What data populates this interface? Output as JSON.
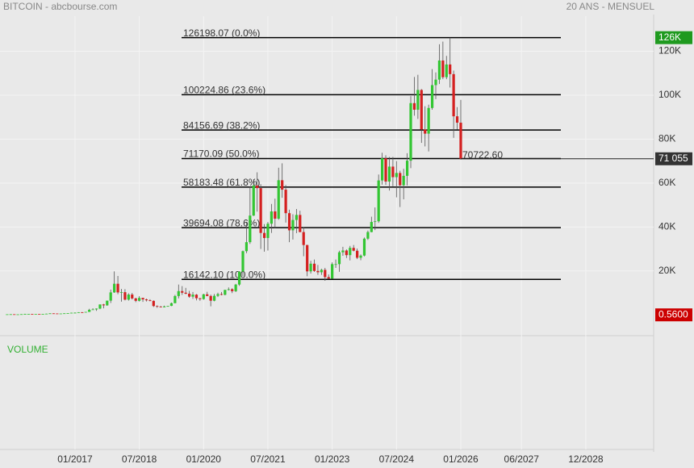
{
  "header": {
    "title": "BITCOIN - abcbourse.com",
    "period": "20 ANS - MENSUEL"
  },
  "chart_data": {
    "type": "candlestick",
    "x": [
      "06/2015",
      "07/2015",
      "08/2015",
      "09/2015",
      "10/2015",
      "11/2015",
      "12/2015",
      "01/2016",
      "02/2016",
      "03/2016",
      "04/2016",
      "05/2016",
      "06/2016",
      "07/2016",
      "08/2016",
      "09/2016",
      "10/2016",
      "11/2016",
      "12/2016",
      "01/2017",
      "02/2017",
      "03/2017",
      "04/2017",
      "05/2017",
      "06/2017",
      "07/2017",
      "08/2017",
      "09/2017",
      "10/2017",
      "11/2017",
      "12/2017",
      "01/2018",
      "02/2018",
      "03/2018",
      "04/2018",
      "05/2018",
      "06/2018",
      "07/2018",
      "08/2018",
      "09/2018",
      "10/2018",
      "11/2018",
      "12/2018",
      "01/2019",
      "02/2019",
      "03/2019",
      "04/2019",
      "05/2019",
      "06/2019",
      "07/2019",
      "08/2019",
      "09/2019",
      "10/2019",
      "11/2019",
      "12/2019",
      "01/2020",
      "02/2020",
      "03/2020",
      "04/2020",
      "05/2020",
      "06/2020",
      "07/2020",
      "08/2020",
      "09/2020",
      "10/2020",
      "11/2020",
      "12/2020",
      "01/2021",
      "02/2021",
      "03/2021",
      "04/2021",
      "05/2021",
      "06/2021",
      "07/2021",
      "08/2021",
      "09/2021",
      "10/2021",
      "11/2021",
      "12/2021",
      "01/2022",
      "02/2022",
      "03/2022",
      "04/2022",
      "05/2022",
      "06/2022",
      "07/2022",
      "08/2022",
      "09/2022",
      "10/2022",
      "11/2022",
      "12/2022",
      "01/2023",
      "02/2023",
      "03/2023",
      "04/2023",
      "05/2023",
      "06/2023",
      "07/2023",
      "08/2023",
      "09/2023",
      "10/2023",
      "11/2023",
      "12/2023",
      "01/2024",
      "02/2024",
      "03/2024",
      "04/2024",
      "05/2024",
      "06/2024",
      "07/2024",
      "08/2024",
      "09/2024",
      "10/2024",
      "11/2024",
      "12/2024",
      "01/2025",
      "02/2025",
      "03/2025",
      "04/2025",
      "05/2025",
      "06/2025",
      "07/2025",
      "08/2025",
      "09/2025",
      "10/2025",
      "11/2025",
      "12/2025",
      "01/2026"
    ],
    "candles": [
      [
        230,
        268,
        220,
        263
      ],
      [
        263,
        318,
        253,
        284
      ],
      [
        284,
        285,
        199,
        230
      ],
      [
        230,
        245,
        224,
        236
      ],
      [
        236,
        334,
        235,
        314
      ],
      [
        314,
        502,
        307,
        377
      ],
      [
        377,
        466,
        350,
        430
      ],
      [
        430,
        462,
        355,
        368
      ],
      [
        368,
        448,
        365,
        437
      ],
      [
        437,
        440,
        405,
        416
      ],
      [
        416,
        465,
        415,
        448
      ],
      [
        448,
        550,
        440,
        531
      ],
      [
        531,
        780,
        525,
        673
      ],
      [
        673,
        700,
        600,
        624
      ],
      [
        624,
        630,
        510,
        573
      ],
      [
        573,
        630,
        570,
        609
      ],
      [
        609,
        720,
        605,
        700
      ],
      [
        700,
        755,
        680,
        742
      ],
      [
        742,
        980,
        740,
        964
      ],
      [
        964,
        1150,
        750,
        970
      ],
      [
        970,
        1210,
        920,
        1190
      ],
      [
        1190,
        1290,
        890,
        1080
      ],
      [
        1080,
        1360,
        1060,
        1350
      ],
      [
        1350,
        2760,
        1350,
        2300
      ],
      [
        2300,
        3000,
        2300,
        2480
      ],
      [
        2480,
        2920,
        1840,
        2870
      ],
      [
        2870,
        4760,
        2600,
        4730
      ],
      [
        4730,
        5000,
        2970,
        4340
      ],
      [
        4340,
        6470,
        4130,
        6470
      ],
      [
        6470,
        11500,
        5400,
        10230
      ],
      [
        10230,
        19800,
        10000,
        14160
      ],
      [
        14160,
        17700,
        9400,
        10220
      ],
      [
        10220,
        11800,
        6000,
        10330
      ],
      [
        10330,
        11700,
        6600,
        6930
      ],
      [
        6930,
        9800,
        6500,
        9240
      ],
      [
        9240,
        10000,
        7000,
        7490
      ],
      [
        7490,
        7800,
        5800,
        6400
      ],
      [
        6400,
        8500,
        6100,
        7730
      ],
      [
        7730,
        7800,
        5900,
        7040
      ],
      [
        7040,
        7400,
        6100,
        6630
      ],
      [
        6630,
        7100,
        6200,
        6370
      ],
      [
        6370,
        6600,
        3600,
        4020
      ],
      [
        4020,
        4300,
        3200,
        3740
      ],
      [
        3740,
        4100,
        3400,
        3460
      ],
      [
        3460,
        4200,
        3400,
        3850
      ],
      [
        3850,
        4100,
        3700,
        4100
      ],
      [
        4100,
        5600,
        4000,
        5320
      ],
      [
        5320,
        9100,
        5300,
        8570
      ],
      [
        8570,
        13800,
        7500,
        10820
      ],
      [
        10820,
        13100,
        9100,
        10090
      ],
      [
        10090,
        12300,
        9400,
        9630
      ],
      [
        9630,
        10900,
        7800,
        8290
      ],
      [
        8290,
        10400,
        7300,
        9200
      ],
      [
        9200,
        9500,
        6600,
        7570
      ],
      [
        7570,
        7700,
        6400,
        7190
      ],
      [
        7190,
        9600,
        6900,
        9350
      ],
      [
        9350,
        10500,
        8500,
        8600
      ],
      [
        8600,
        9200,
        3900,
        6440
      ],
      [
        6440,
        9500,
        6200,
        8660
      ],
      [
        8660,
        10100,
        8100,
        9460
      ],
      [
        9460,
        10400,
        8900,
        9140
      ],
      [
        9140,
        11450,
        8900,
        11350
      ],
      [
        11350,
        12500,
        11100,
        11680
      ],
      [
        11680,
        12100,
        9900,
        10780
      ],
      [
        10780,
        14100,
        10400,
        13800
      ],
      [
        13800,
        19900,
        13200,
        19700
      ],
      [
        19700,
        29300,
        17600,
        29000
      ],
      [
        29000,
        41900,
        28100,
        33100
      ],
      [
        33100,
        58300,
        32300,
        45200
      ],
      [
        45200,
        61800,
        45000,
        58900
      ],
      [
        58900,
        64900,
        47000,
        57700
      ],
      [
        57700,
        59500,
        30000,
        37300
      ],
      [
        37300,
        41300,
        28800,
        35000
      ],
      [
        35000,
        42300,
        29300,
        41500
      ],
      [
        41500,
        50500,
        37300,
        47100
      ],
      [
        47100,
        52900,
        39600,
        43800
      ],
      [
        43800,
        67000,
        43300,
        61300
      ],
      [
        61300,
        69000,
        53300,
        57000
      ],
      [
        57000,
        59100,
        42000,
        46300
      ],
      [
        46300,
        47900,
        33100,
        38500
      ],
      [
        38500,
        45800,
        34300,
        43200
      ],
      [
        43200,
        48200,
        37200,
        45500
      ],
      [
        45500,
        47400,
        37600,
        37700
      ],
      [
        37700,
        40000,
        26700,
        31800
      ],
      [
        31800,
        31900,
        17600,
        19800
      ],
      [
        19800,
        24600,
        18800,
        23300
      ],
      [
        23300,
        25200,
        19600,
        20000
      ],
      [
        20000,
        22700,
        18200,
        19400
      ],
      [
        19400,
        21000,
        18200,
        20500
      ],
      [
        20500,
        21400,
        15500,
        17200
      ],
      [
        17200,
        18400,
        16300,
        16500
      ],
      [
        16500,
        23900,
        16500,
        23100
      ],
      [
        23100,
        25200,
        21400,
        23100
      ],
      [
        23100,
        29200,
        19600,
        28500
      ],
      [
        28500,
        31000,
        26900,
        29300
      ],
      [
        29300,
        29800,
        25900,
        27200
      ],
      [
        27200,
        31400,
        24800,
        30500
      ],
      [
        30500,
        31800,
        28900,
        29200
      ],
      [
        29200,
        30200,
        25400,
        26000
      ],
      [
        26000,
        27500,
        24900,
        27000
      ],
      [
        27000,
        35200,
        26600,
        34700
      ],
      [
        34700,
        38400,
        34100,
        37700
      ],
      [
        37700,
        44700,
        37600,
        42300
      ],
      [
        42300,
        48900,
        38600,
        42600
      ],
      [
        42600,
        63900,
        41900,
        61200
      ],
      [
        61200,
        73800,
        59300,
        71300
      ],
      [
        71300,
        72700,
        59200,
        60700
      ],
      [
        60700,
        71900,
        56600,
        67500
      ],
      [
        67500,
        71900,
        58600,
        62700
      ],
      [
        62700,
        70000,
        53500,
        64600
      ],
      [
        64600,
        65600,
        49100,
        59000
      ],
      [
        59000,
        66500,
        52600,
        63300
      ],
      [
        63300,
        73600,
        58900,
        70200
      ],
      [
        70200,
        99600,
        66800,
        96400
      ],
      [
        96400,
        108300,
        90700,
        93400
      ],
      [
        93400,
        109300,
        89200,
        102400
      ],
      [
        102400,
        102800,
        78300,
        84400
      ],
      [
        84400,
        95000,
        76700,
        82500
      ],
      [
        82500,
        95700,
        74400,
        94200
      ],
      [
        94200,
        111900,
        93400,
        104600
      ],
      [
        104600,
        110400,
        98200,
        107100
      ],
      [
        107100,
        123200,
        105100,
        115800
      ],
      [
        115800,
        124400,
        107300,
        108200
      ],
      [
        108200,
        117900,
        107300,
        114000
      ],
      [
        114000,
        126198.07,
        103500,
        109600
      ],
      [
        109600,
        111200,
        80600,
        90400
      ],
      [
        90400,
        94600,
        84400,
        87500
      ],
      [
        87500,
        97900,
        70722.6,
        71055
      ]
    ],
    "up_color": "#33c633",
    "down_color": "#d42020",
    "xlim": [
      "04/2015",
      "07/2030"
    ],
    "xticks": [
      "01/2017",
      "07/2018",
      "01/2020",
      "07/2021",
      "01/2023",
      "07/2024",
      "01/2026",
      "06/2027",
      "12/2028"
    ],
    "ylim": [
      -8000,
      136000
    ],
    "yticks": [
      {
        "value": 20000,
        "label": "20K"
      },
      {
        "value": 40000,
        "label": "40K"
      },
      {
        "value": 60000,
        "label": "60K"
      },
      {
        "value": 80000,
        "label": "80K"
      },
      {
        "value": 100000,
        "label": "100K"
      },
      {
        "value": 120000,
        "label": "120K"
      }
    ],
    "grid": true,
    "fib_levels": [
      {
        "value": 126198.07,
        "label": "126198.07  (0.0%)"
      },
      {
        "value": 100224.86,
        "label": "100224.86  (23.6%)"
      },
      {
        "value": 84156.69,
        "label": "84156.69  (38.2%)"
      },
      {
        "value": 71170.09,
        "label": "71170.09  (50.0%)"
      },
      {
        "value": 58183.48,
        "label": "58183.48  (61.8%)"
      },
      {
        "value": 39694.08,
        "label": "39694.08  (78.6%)"
      },
      {
        "value": 16142.1,
        "label": "16142.10  (100.0%)"
      }
    ],
    "high_marker": {
      "value": 126198.07,
      "label": "126K",
      "color": "#1f9a1f"
    },
    "last_price": {
      "value": 71055,
      "label": "71 055",
      "color": "#333333"
    },
    "start_price": {
      "value": 0.56,
      "label": "0.5600",
      "color": "#cc0000"
    },
    "annotation": {
      "value": 70722.6,
      "label": "70722.60"
    },
    "volume_label": "VOLUME"
  }
}
